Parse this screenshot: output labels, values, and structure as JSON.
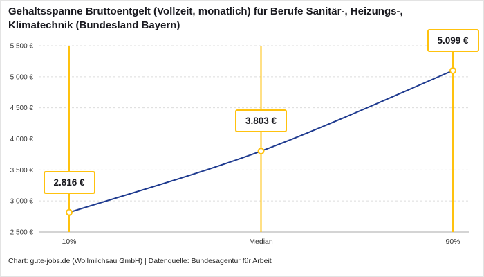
{
  "title": "Gehaltsspanne Bruttoentgelt (Vollzeit, monatlich) für Berufe Sanitär-, Heizungs-, Klimatechnik (Bundesland Bayern)",
  "footer": "Chart: gute-jobs.de (Wollmilchsau GmbH) | Datenquelle: Bundesagentur für Arbeit",
  "colors": {
    "accent_yellow": "#FFC20E",
    "line_blue": "#1E3A8F",
    "grid": "#dcdcdc",
    "axis": "#a8a8a8",
    "tick_text": "#333333"
  },
  "chart_data": {
    "type": "line",
    "title": "Gehaltsspanne Bruttoentgelt (Vollzeit, monatlich) für Berufe Sanitär-, Heizungs-, Klimatechnik (Bundesland Bayern)",
    "categories": [
      "10%",
      "Median",
      "90%"
    ],
    "values": [
      2816,
      3803,
      5099
    ],
    "value_labels": [
      "2.816 €",
      "3.803 €",
      "5.099 €"
    ],
    "ylim": [
      2500,
      5500
    ],
    "ytick_step": 500,
    "ytick_labels": [
      "2.500 €",
      "3.000 €",
      "3.500 €",
      "4.000 €",
      "4.500 €",
      "5.000 €",
      "5.500 €"
    ],
    "xlabel": "",
    "ylabel": "",
    "grid": true,
    "legend": "none",
    "marker_style": "circle-yellow-ring",
    "vertical_marker_lines": true
  }
}
